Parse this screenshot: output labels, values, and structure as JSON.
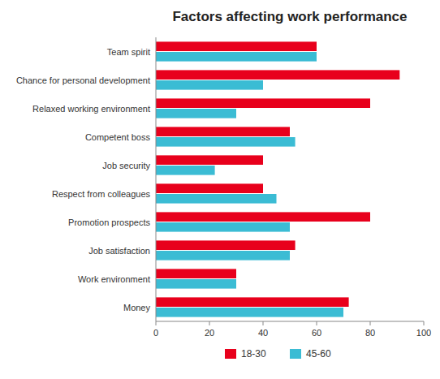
{
  "chart_data": {
    "type": "bar",
    "orientation": "horizontal",
    "title": "Factors affecting work performance",
    "categories": [
      "Team spirit",
      "Chance for personal development",
      "Relaxed working environment",
      "Competent boss",
      "Job security",
      "Respect from colleagues",
      "Promotion prospects",
      "Job satisfaction",
      "Work environment",
      "Money"
    ],
    "series": [
      {
        "name": "18-30",
        "color": "#e8001c",
        "values": [
          60,
          91,
          80,
          50,
          40,
          40,
          80,
          52,
          30,
          72
        ]
      },
      {
        "name": "45-60",
        "color": "#3bbcd4",
        "values": [
          60,
          40,
          30,
          52,
          22,
          45,
          50,
          50,
          30,
          70
        ]
      }
    ],
    "xlim": [
      0,
      100
    ],
    "xticks": [
      0,
      20,
      40,
      60,
      80,
      100
    ],
    "grid": false,
    "legend": "bottom"
  }
}
